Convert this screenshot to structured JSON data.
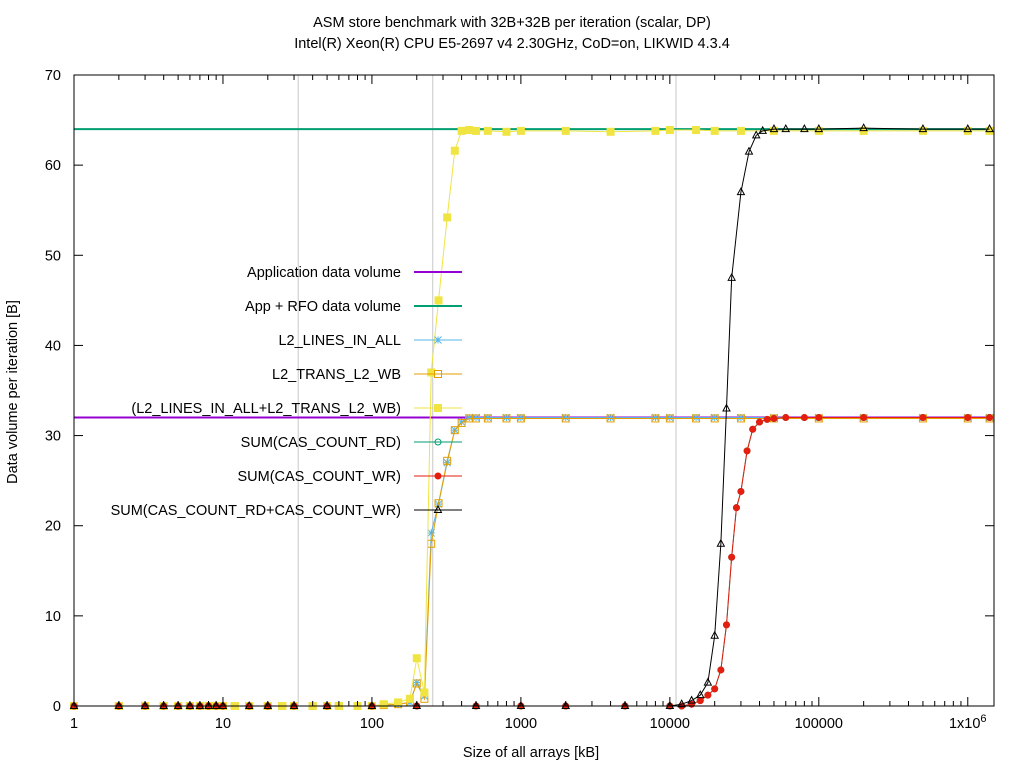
{
  "chart_data": {
    "type": "line",
    "title": "ASM store benchmark with 32B+32B per iteration (scalar, DP)",
    "subtitle": "Intel(R) Xeon(R) CPU E5-2697 v4  2.30GHz, CoD=on, LIKWID 4.3.4",
    "xlabel": "Size of all arrays [kB]",
    "ylabel": "Data volume per iteration [B]",
    "xscale": "log",
    "xlim": [
      1,
      1500000
    ],
    "ylim": [
      0,
      70
    ],
    "grid": "vertical lines at 32, 256, 11000 kB",
    "vlines": [
      32,
      256,
      11000
    ],
    "x_ticks": [
      {
        "value": 1,
        "label": "1"
      },
      {
        "value": 10,
        "label": "10"
      },
      {
        "value": 100,
        "label": "100"
      },
      {
        "value": 1000,
        "label": "1000"
      },
      {
        "value": 10000,
        "label": "10000"
      },
      {
        "value": 100000,
        "label": "100000"
      },
      {
        "value": 1000000,
        "label": "1x10",
        "sup": "6"
      }
    ],
    "y_ticks": [
      {
        "value": 0,
        "label": "0"
      },
      {
        "value": 10,
        "label": "10"
      },
      {
        "value": 20,
        "label": "20"
      },
      {
        "value": 30,
        "label": "30"
      },
      {
        "value": 40,
        "label": "40"
      },
      {
        "value": 50,
        "label": "50"
      },
      {
        "value": 60,
        "label": "60"
      },
      {
        "value": 70,
        "label": "70"
      }
    ],
    "legend_position": "left-center",
    "series": [
      {
        "name": "Application data volume",
        "color": "#9400d3",
        "marker": "none",
        "kind": "hline",
        "y": 32
      },
      {
        "name": "App + RFO data volume",
        "color": "#009e73",
        "marker": "none",
        "kind": "hline",
        "y": 64
      },
      {
        "name": "L2_LINES_IN_ALL",
        "color": "#56b4e9",
        "marker": "star",
        "points": [
          [
            1,
            0
          ],
          [
            2,
            0
          ],
          [
            3,
            0
          ],
          [
            4,
            0
          ],
          [
            5,
            0
          ],
          [
            6,
            0
          ],
          [
            7,
            0
          ],
          [
            8,
            0
          ],
          [
            9,
            0
          ],
          [
            10,
            0
          ],
          [
            12,
            0
          ],
          [
            15,
            0
          ],
          [
            20,
            0
          ],
          [
            25,
            0
          ],
          [
            30,
            0
          ],
          [
            40,
            0
          ],
          [
            50,
            0
          ],
          [
            60,
            0
          ],
          [
            80,
            0
          ],
          [
            100,
            0
          ],
          [
            120,
            0.1
          ],
          [
            150,
            0.2
          ],
          [
            180,
            0.4
          ],
          [
            200,
            2.6
          ],
          [
            225,
            1.1
          ],
          [
            250,
            19.2
          ],
          [
            280,
            22.4
          ],
          [
            320,
            27
          ],
          [
            360,
            30.6
          ],
          [
            400,
            31.5
          ],
          [
            450,
            32
          ],
          [
            500,
            32
          ],
          [
            600,
            32
          ],
          [
            800,
            32
          ],
          [
            1000,
            32
          ],
          [
            2000,
            32
          ],
          [
            4000,
            32
          ],
          [
            8000,
            32
          ],
          [
            10000,
            32
          ],
          [
            15000,
            32
          ],
          [
            20000,
            32
          ],
          [
            30000,
            32
          ],
          [
            50000,
            32
          ],
          [
            100000,
            32
          ],
          [
            200000,
            32
          ],
          [
            500000,
            32
          ],
          [
            1000000,
            32
          ],
          [
            1400000,
            32
          ]
        ]
      },
      {
        "name": "L2_TRANS_L2_WB",
        "color": "#e69f00",
        "marker": "square-open",
        "points": [
          [
            1,
            0
          ],
          [
            2,
            0
          ],
          [
            3,
            0
          ],
          [
            4,
            0
          ],
          [
            5,
            0
          ],
          [
            6,
            0
          ],
          [
            7,
            0
          ],
          [
            8,
            0
          ],
          [
            9,
            0
          ],
          [
            10,
            0
          ],
          [
            12,
            0
          ],
          [
            15,
            0
          ],
          [
            20,
            0
          ],
          [
            25,
            0
          ],
          [
            30,
            0
          ],
          [
            40,
            0
          ],
          [
            50,
            0
          ],
          [
            60,
            0
          ],
          [
            80,
            0
          ],
          [
            100,
            0
          ],
          [
            120,
            0.1
          ],
          [
            150,
            0.2
          ],
          [
            180,
            0.4
          ],
          [
            200,
            2.5
          ],
          [
            225,
            0.8
          ],
          [
            250,
            18
          ],
          [
            280,
            22.5
          ],
          [
            320,
            27.2
          ],
          [
            360,
            30.6
          ],
          [
            400,
            31.4
          ],
          [
            450,
            31.9
          ],
          [
            500,
            31.9
          ],
          [
            600,
            31.9
          ],
          [
            800,
            31.9
          ],
          [
            1000,
            31.9
          ],
          [
            2000,
            31.9
          ],
          [
            4000,
            31.9
          ],
          [
            8000,
            31.9
          ],
          [
            10000,
            31.9
          ],
          [
            15000,
            31.9
          ],
          [
            20000,
            31.9
          ],
          [
            30000,
            31.9
          ],
          [
            50000,
            31.9
          ],
          [
            100000,
            31.9
          ],
          [
            200000,
            31.9
          ],
          [
            500000,
            31.9
          ],
          [
            1000000,
            31.9
          ],
          [
            1400000,
            31.9
          ]
        ]
      },
      {
        "name": "(L2_LINES_IN_ALL+L2_TRANS_L2_WB)",
        "color": "#f0e442",
        "marker": "square-filled",
        "points": [
          [
            1,
            0
          ],
          [
            2,
            0
          ],
          [
            3,
            0
          ],
          [
            4,
            0
          ],
          [
            5,
            0
          ],
          [
            6,
            0
          ],
          [
            7,
            0
          ],
          [
            8,
            0
          ],
          [
            9,
            0
          ],
          [
            10,
            0
          ],
          [
            12,
            0
          ],
          [
            15,
            0
          ],
          [
            20,
            0
          ],
          [
            25,
            0
          ],
          [
            30,
            0
          ],
          [
            40,
            0
          ],
          [
            50,
            0
          ],
          [
            60,
            0
          ],
          [
            80,
            0
          ],
          [
            100,
            0
          ],
          [
            120,
            0.2
          ],
          [
            150,
            0.4
          ],
          [
            180,
            0.8
          ],
          [
            200,
            5.3
          ],
          [
            225,
            1.5
          ],
          [
            250,
            37
          ],
          [
            280,
            45
          ],
          [
            320,
            54.2
          ],
          [
            360,
            61.6
          ],
          [
            400,
            63.8
          ],
          [
            450,
            63.9
          ],
          [
            500,
            63.8
          ],
          [
            600,
            63.8
          ],
          [
            800,
            63.7
          ],
          [
            1000,
            63.8
          ],
          [
            2000,
            63.8
          ],
          [
            4000,
            63.7
          ],
          [
            8000,
            63.8
          ],
          [
            10000,
            63.9
          ],
          [
            15000,
            63.9
          ],
          [
            20000,
            63.8
          ],
          [
            30000,
            63.8
          ],
          [
            50000,
            63.8
          ],
          [
            100000,
            63.8
          ],
          [
            200000,
            63.8
          ],
          [
            500000,
            63.8
          ],
          [
            1000000,
            63.8
          ],
          [
            1400000,
            63.8
          ]
        ]
      },
      {
        "name": "SUM(CAS_COUNT_RD)",
        "color": "#009e73",
        "marker": "circle-open",
        "points": [
          [
            1,
            0
          ],
          [
            2,
            0
          ],
          [
            3,
            0
          ],
          [
            4,
            0
          ],
          [
            5,
            0
          ],
          [
            6,
            0
          ],
          [
            7,
            0
          ],
          [
            8,
            0
          ],
          [
            9,
            0
          ],
          [
            10,
            0
          ],
          [
            15,
            0
          ],
          [
            20,
            0
          ],
          [
            30,
            0
          ],
          [
            50,
            0
          ],
          [
            100,
            0
          ],
          [
            200,
            0
          ],
          [
            500,
            0
          ],
          [
            1000,
            0
          ],
          [
            2000,
            0
          ],
          [
            5000,
            0
          ],
          [
            10000,
            0
          ],
          [
            12000,
            0
          ],
          [
            14000,
            0.2
          ],
          [
            16000,
            0.6
          ],
          [
            18000,
            1.2
          ],
          [
            20000,
            1.9
          ],
          [
            22000,
            4
          ],
          [
            24000,
            9
          ],
          [
            26000,
            16.5
          ],
          [
            28000,
            22
          ],
          [
            30000,
            23.8
          ],
          [
            33000,
            28.3
          ],
          [
            36000,
            30.7
          ],
          [
            40000,
            31.5
          ],
          [
            45000,
            31.8
          ],
          [
            50000,
            31.9
          ],
          [
            60000,
            32
          ],
          [
            80000,
            32
          ],
          [
            100000,
            32
          ],
          [
            200000,
            32
          ],
          [
            500000,
            32
          ],
          [
            1000000,
            32
          ],
          [
            1400000,
            32
          ]
        ]
      },
      {
        "name": "SUM(CAS_COUNT_WR)",
        "color": "#e51e10",
        "marker": "circle-filled",
        "points": [
          [
            1,
            0
          ],
          [
            2,
            0
          ],
          [
            3,
            0
          ],
          [
            4,
            0
          ],
          [
            5,
            0
          ],
          [
            6,
            0
          ],
          [
            7,
            0
          ],
          [
            8,
            0
          ],
          [
            9,
            0
          ],
          [
            10,
            0
          ],
          [
            15,
            0
          ],
          [
            20,
            0
          ],
          [
            30,
            0
          ],
          [
            50,
            0
          ],
          [
            100,
            0
          ],
          [
            200,
            0
          ],
          [
            500,
            0
          ],
          [
            1000,
            0
          ],
          [
            2000,
            0
          ],
          [
            5000,
            0
          ],
          [
            10000,
            0
          ],
          [
            12000,
            0
          ],
          [
            14000,
            0.2
          ],
          [
            16000,
            0.6
          ],
          [
            18000,
            1.2
          ],
          [
            20000,
            1.9
          ],
          [
            22000,
            4
          ],
          [
            24000,
            9
          ],
          [
            26000,
            16.5
          ],
          [
            28000,
            22
          ],
          [
            30000,
            23.8
          ],
          [
            33000,
            28.3
          ],
          [
            36000,
            30.7
          ],
          [
            40000,
            31.5
          ],
          [
            45000,
            31.8
          ],
          [
            50000,
            31.9
          ],
          [
            60000,
            32
          ],
          [
            80000,
            32
          ],
          [
            100000,
            32
          ],
          [
            200000,
            32
          ],
          [
            500000,
            32
          ],
          [
            1000000,
            32
          ],
          [
            1400000,
            32
          ]
        ]
      },
      {
        "name": "SUM(CAS_COUNT_RD+CAS_COUNT_WR)",
        "color": "#000000",
        "marker": "triangle-open",
        "points": [
          [
            1,
            0
          ],
          [
            2,
            0
          ],
          [
            3,
            0
          ],
          [
            4,
            0
          ],
          [
            5,
            0
          ],
          [
            6,
            0
          ],
          [
            7,
            0
          ],
          [
            8,
            0
          ],
          [
            9,
            0
          ],
          [
            10,
            0
          ],
          [
            15,
            0
          ],
          [
            20,
            0
          ],
          [
            30,
            0
          ],
          [
            50,
            0
          ],
          [
            100,
            0
          ],
          [
            200,
            0
          ],
          [
            500,
            0
          ],
          [
            1000,
            0
          ],
          [
            2000,
            0
          ],
          [
            5000,
            0
          ],
          [
            10000,
            0
          ],
          [
            12000,
            0.2
          ],
          [
            14000,
            0.6
          ],
          [
            16000,
            1.2
          ],
          [
            18000,
            2.6
          ],
          [
            20000,
            7.8
          ],
          [
            22000,
            18
          ],
          [
            24000,
            33
          ],
          [
            26000,
            47.5
          ],
          [
            30000,
            57
          ],
          [
            34000,
            61.5
          ],
          [
            38000,
            63.3
          ],
          [
            42000,
            63.8
          ],
          [
            50000,
            64
          ],
          [
            60000,
            64
          ],
          [
            80000,
            64
          ],
          [
            100000,
            64
          ],
          [
            200000,
            64.1
          ],
          [
            500000,
            64
          ],
          [
            1000000,
            64
          ],
          [
            1400000,
            64
          ]
        ]
      }
    ]
  }
}
